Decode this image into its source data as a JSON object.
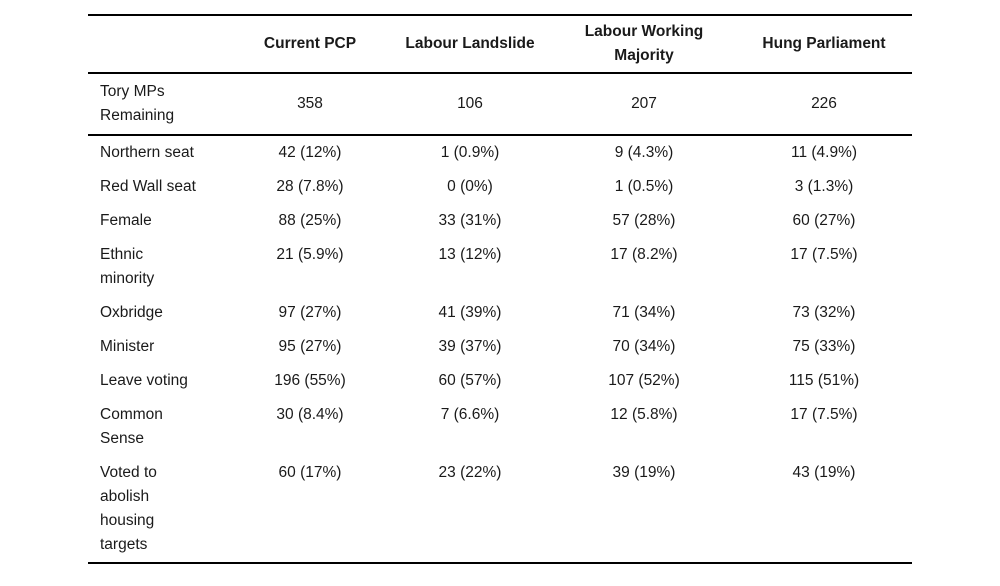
{
  "page": {
    "background": "#ffffff",
    "text_color": "#1a1a1a",
    "rule_color": "#000000"
  },
  "table": {
    "columns": [
      {
        "label": ""
      },
      {
        "label": "Current PCP"
      },
      {
        "label": "Labour Landslide"
      },
      {
        "label": "Labour Working\nMajority"
      },
      {
        "label": "Hung Parliament"
      }
    ],
    "summary_row": {
      "label": "Tory MPs\nRemaining",
      "values": [
        "358",
        "106",
        "207",
        "226"
      ]
    },
    "rows": [
      {
        "label": "Northern seat",
        "values": [
          "42 (12%)",
          "1 (0.9%)",
          "9 (4.3%)",
          "11 (4.9%)"
        ]
      },
      {
        "label": "Red Wall seat",
        "values": [
          "28 (7.8%)",
          "0 (0%)",
          "1 (0.5%)",
          "3 (1.3%)"
        ]
      },
      {
        "label": "Female",
        "values": [
          "88 (25%)",
          "33 (31%)",
          "57 (28%)",
          "60 (27%)"
        ]
      },
      {
        "label": "Ethnic\nminority",
        "values": [
          "21 (5.9%)",
          "13 (12%)",
          "17 (8.2%)",
          "17 (7.5%)"
        ]
      },
      {
        "label": "Oxbridge",
        "values": [
          "97 (27%)",
          "41 (39%)",
          "71 (34%)",
          "73 (32%)"
        ]
      },
      {
        "label": "Minister",
        "values": [
          "95 (27%)",
          "39 (37%)",
          "70 (34%)",
          "75 (33%)"
        ]
      },
      {
        "label": "Leave voting",
        "values": [
          "196 (55%)",
          "60 (57%)",
          "107 (52%)",
          "115 (51%)"
        ]
      },
      {
        "label": "Common\nSense",
        "values": [
          "30 (8.4%)",
          "7 (6.6%)",
          "12 (5.8%)",
          "17 (7.5%)"
        ]
      },
      {
        "label": "Voted to\nabolish\nhousing\ntargets",
        "values": [
          "60 (17%)",
          "23 (22%)",
          "39 (19%)",
          "43 (19%)"
        ]
      }
    ]
  }
}
